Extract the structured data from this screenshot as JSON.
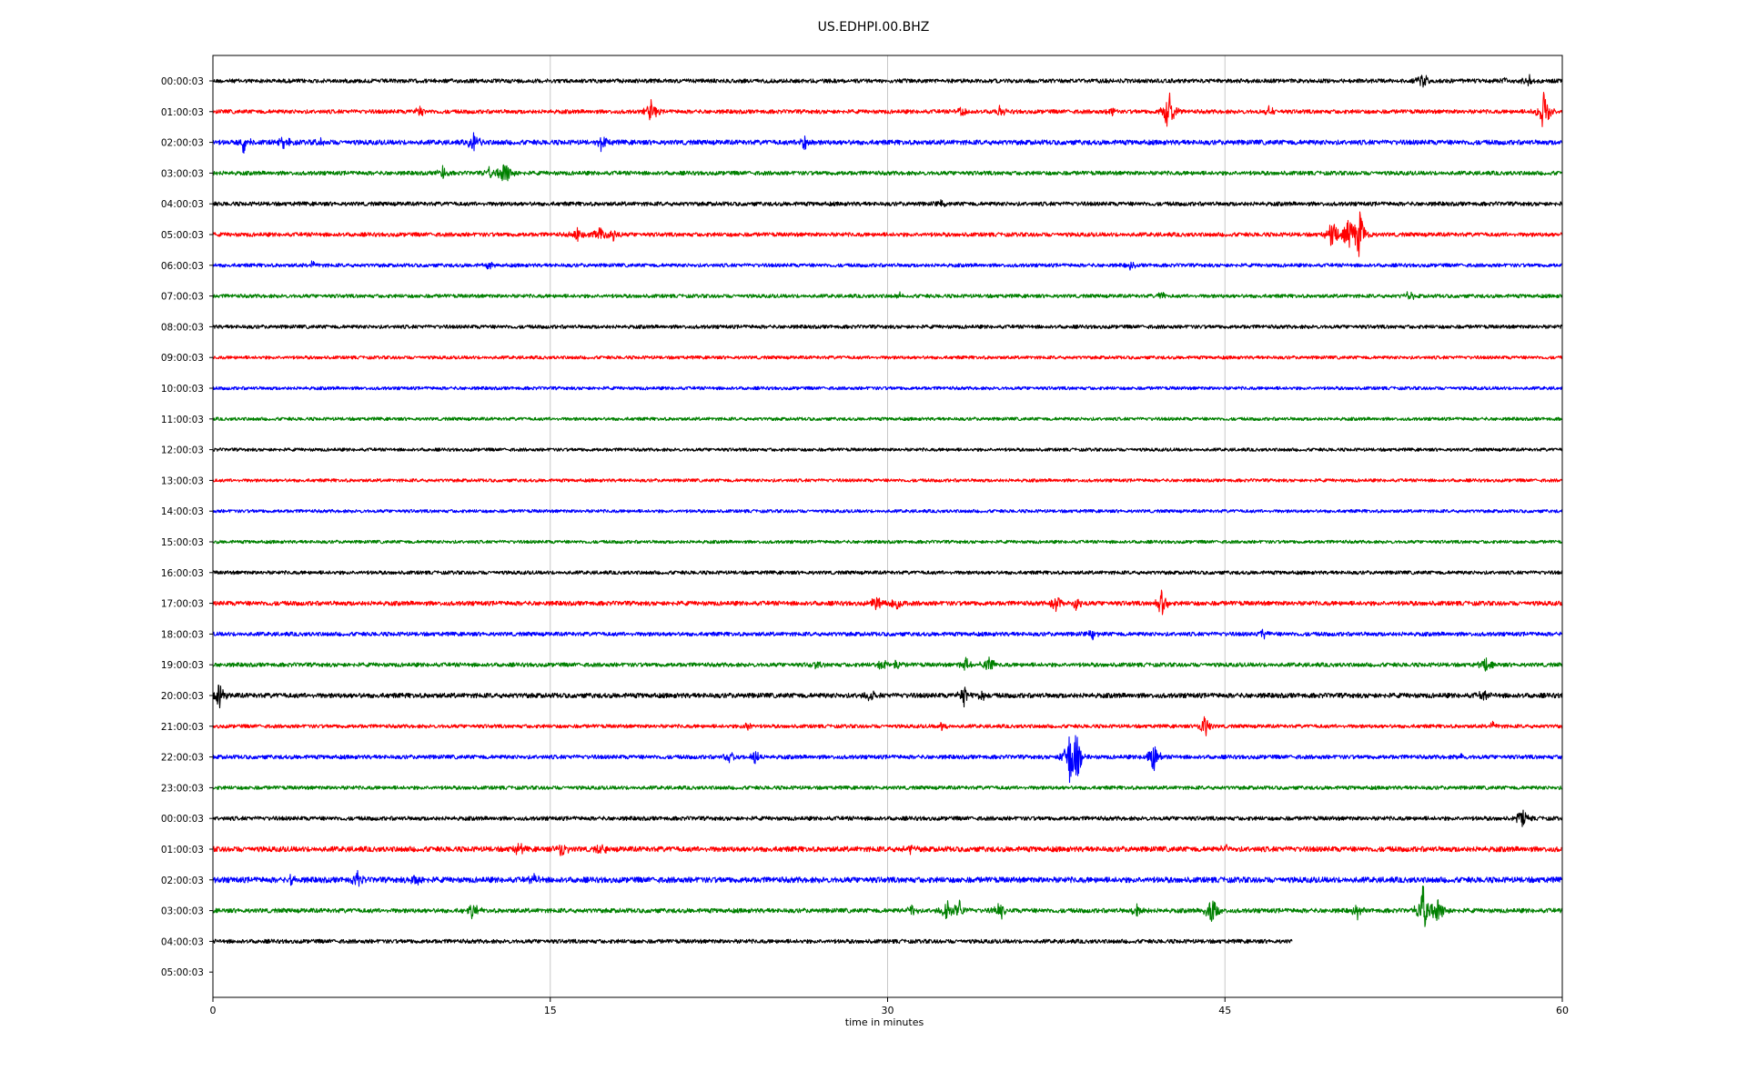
{
  "chart_data": {
    "type": "line",
    "title": "US.EDHPI.00.BHZ",
    "xlabel": "time in minutes",
    "ylabel": "",
    "xlim": [
      0,
      60
    ],
    "xticks": [
      "0",
      "15",
      "30",
      "45",
      "60"
    ],
    "grid": "vertical lines at 15, 30, 45",
    "colors": [
      "#000000",
      "#ff0000",
      "#0000ff",
      "#008000"
    ],
    "row_labels": [
      "00:00:03",
      "01:00:03",
      "02:00:03",
      "03:00:03",
      "04:00:03",
      "05:00:03",
      "06:00:03",
      "07:00:03",
      "08:00:03",
      "09:00:03",
      "10:00:03",
      "11:00:03",
      "12:00:03",
      "13:00:03",
      "14:00:03",
      "15:00:03",
      "16:00:03",
      "17:00:03",
      "18:00:03",
      "19:00:03",
      "20:00:03",
      "21:00:03",
      "22:00:03",
      "23:00:03",
      "00:00:03",
      "01:00:03",
      "02:00:03",
      "03:00:03",
      "04:00:03",
      "05:00:03"
    ],
    "series": [
      {
        "label": "00:00:03",
        "end_minute": 60,
        "noise": 1.0,
        "events": [
          {
            "t": 53.8,
            "amp": 10
          },
          {
            "t": 57.5,
            "amp": 5
          },
          {
            "t": 58.5,
            "amp": 7
          }
        ]
      },
      {
        "label": "01:00:03",
        "end_minute": 60,
        "noise": 1.0,
        "events": [
          {
            "t": 9.2,
            "amp": 7
          },
          {
            "t": 19.5,
            "amp": 14
          },
          {
            "t": 33.3,
            "amp": 6
          },
          {
            "t": 35.0,
            "amp": 8
          },
          {
            "t": 40.0,
            "amp": 6
          },
          {
            "t": 42.5,
            "amp": 28
          },
          {
            "t": 47.0,
            "amp": 7
          },
          {
            "t": 59.2,
            "amp": 26
          }
        ]
      },
      {
        "label": "02:00:03",
        "end_minute": 60,
        "noise": 1.2,
        "events": [
          {
            "t": 1.4,
            "amp": 14
          },
          {
            "t": 3.2,
            "amp": 9
          },
          {
            "t": 4.8,
            "amp": 6
          },
          {
            "t": 11.6,
            "amp": 12
          },
          {
            "t": 17.3,
            "amp": 12
          },
          {
            "t": 26.3,
            "amp": 9
          }
        ]
      },
      {
        "label": "03:00:03",
        "end_minute": 60,
        "noise": 1.0,
        "events": [
          {
            "t": 10.2,
            "amp": 8
          },
          {
            "t": 12.3,
            "amp": 7
          },
          {
            "t": 13.0,
            "amp": 18
          }
        ]
      },
      {
        "label": "04:00:03",
        "end_minute": 60,
        "noise": 1.0,
        "events": [
          {
            "t": 32.4,
            "amp": 5
          }
        ]
      },
      {
        "label": "05:00:03",
        "end_minute": 60,
        "noise": 1.0,
        "events": [
          {
            "t": 16.2,
            "amp": 9
          },
          {
            "t": 17.2,
            "amp": 13
          },
          {
            "t": 17.8,
            "amp": 8
          },
          {
            "t": 49.8,
            "amp": 22
          },
          {
            "t": 50.5,
            "amp": 18
          },
          {
            "t": 51.0,
            "amp": 30
          }
        ]
      },
      {
        "label": "06:00:03",
        "end_minute": 60,
        "noise": 0.9,
        "events": [
          {
            "t": 4.4,
            "amp": 5
          },
          {
            "t": 12.3,
            "amp": 4
          },
          {
            "t": 40.8,
            "amp": 4
          }
        ]
      },
      {
        "label": "07:00:03",
        "end_minute": 60,
        "noise": 0.9,
        "events": [
          {
            "t": 30.6,
            "amp": 4
          },
          {
            "t": 42.2,
            "amp": 5
          },
          {
            "t": 53.2,
            "amp": 6
          }
        ]
      },
      {
        "label": "08:00:03",
        "end_minute": 60,
        "noise": 0.9,
        "events": []
      },
      {
        "label": "09:00:03",
        "end_minute": 60,
        "noise": 0.8,
        "events": []
      },
      {
        "label": "10:00:03",
        "end_minute": 60,
        "noise": 0.8,
        "events": []
      },
      {
        "label": "11:00:03",
        "end_minute": 60,
        "noise": 0.8,
        "events": []
      },
      {
        "label": "12:00:03",
        "end_minute": 60,
        "noise": 0.8,
        "events": []
      },
      {
        "label": "13:00:03",
        "end_minute": 60,
        "noise": 0.8,
        "events": []
      },
      {
        "label": "14:00:03",
        "end_minute": 60,
        "noise": 0.8,
        "events": []
      },
      {
        "label": "15:00:03",
        "end_minute": 60,
        "noise": 0.8,
        "events": []
      },
      {
        "label": "16:00:03",
        "end_minute": 60,
        "noise": 0.9,
        "events": []
      },
      {
        "label": "17:00:03",
        "end_minute": 60,
        "noise": 1.1,
        "events": [
          {
            "t": 29.5,
            "amp": 10
          },
          {
            "t": 30.4,
            "amp": 12
          },
          {
            "t": 37.5,
            "amp": 10
          },
          {
            "t": 38.4,
            "amp": 9
          },
          {
            "t": 42.2,
            "amp": 16
          }
        ]
      },
      {
        "label": "18:00:03",
        "end_minute": 60,
        "noise": 1.0,
        "events": [
          {
            "t": 39.1,
            "amp": 7
          },
          {
            "t": 46.7,
            "amp": 7
          }
        ]
      },
      {
        "label": "19:00:03",
        "end_minute": 60,
        "noise": 1.0,
        "events": [
          {
            "t": 26.8,
            "amp": 6
          },
          {
            "t": 29.8,
            "amp": 8
          },
          {
            "t": 30.4,
            "amp": 6
          },
          {
            "t": 33.5,
            "amp": 9
          },
          {
            "t": 34.5,
            "amp": 14
          },
          {
            "t": 56.6,
            "amp": 10
          }
        ]
      },
      {
        "label": "20:00:03",
        "end_minute": 60,
        "noise": 1.2,
        "events": [
          {
            "t": 0.3,
            "amp": 20
          },
          {
            "t": 29.2,
            "amp": 9
          },
          {
            "t": 33.4,
            "amp": 12
          },
          {
            "t": 34.2,
            "amp": 6
          },
          {
            "t": 56.5,
            "amp": 6
          }
        ]
      },
      {
        "label": "21:00:03",
        "end_minute": 60,
        "noise": 0.9,
        "events": [
          {
            "t": 23.8,
            "amp": 5
          },
          {
            "t": 32.4,
            "amp": 5
          },
          {
            "t": 44.1,
            "amp": 14
          },
          {
            "t": 56.9,
            "amp": 5
          }
        ]
      },
      {
        "label": "22:00:03",
        "end_minute": 60,
        "noise": 1.0,
        "events": [
          {
            "t": 23.0,
            "amp": 9
          },
          {
            "t": 24.1,
            "amp": 9
          },
          {
            "t": 38.1,
            "amp": 30
          },
          {
            "t": 38.4,
            "amp": 24
          },
          {
            "t": 41.8,
            "amp": 20
          },
          {
            "t": 55.5,
            "amp": 5
          }
        ]
      },
      {
        "label": "23:00:03",
        "end_minute": 60,
        "noise": 0.9,
        "events": []
      },
      {
        "label": "00:00:03",
        "end_minute": 60,
        "noise": 1.0,
        "events": [
          {
            "t": 58.2,
            "amp": 12
          }
        ]
      },
      {
        "label": "01:00:03",
        "end_minute": 60,
        "noise": 1.3,
        "events": [
          {
            "t": 13.6,
            "amp": 8
          },
          {
            "t": 15.5,
            "amp": 10
          },
          {
            "t": 17.3,
            "amp": 8
          },
          {
            "t": 31.0,
            "amp": 6
          },
          {
            "t": 45.0,
            "amp": 6
          }
        ]
      },
      {
        "label": "02:00:03",
        "end_minute": 60,
        "noise": 1.4,
        "events": [
          {
            "t": 3.5,
            "amp": 6
          },
          {
            "t": 6.4,
            "amp": 10
          },
          {
            "t": 9.0,
            "amp": 7
          },
          {
            "t": 14.3,
            "amp": 7
          }
        ]
      },
      {
        "label": "03:00:03",
        "end_minute": 60,
        "noise": 1.1,
        "events": [
          {
            "t": 11.6,
            "amp": 12
          },
          {
            "t": 31.1,
            "amp": 8
          },
          {
            "t": 32.6,
            "amp": 16
          },
          {
            "t": 33.2,
            "amp": 12
          },
          {
            "t": 35.0,
            "amp": 12
          },
          {
            "t": 41.1,
            "amp": 12
          },
          {
            "t": 44.4,
            "amp": 20
          },
          {
            "t": 50.9,
            "amp": 8
          },
          {
            "t": 53.8,
            "amp": 32
          },
          {
            "t": 54.5,
            "amp": 18
          }
        ]
      },
      {
        "label": "04:00:03",
        "end_minute": 48,
        "noise": 1.0,
        "events": []
      },
      {
        "label": "05:00:03",
        "end_minute": 0,
        "noise": 0,
        "events": []
      }
    ]
  }
}
